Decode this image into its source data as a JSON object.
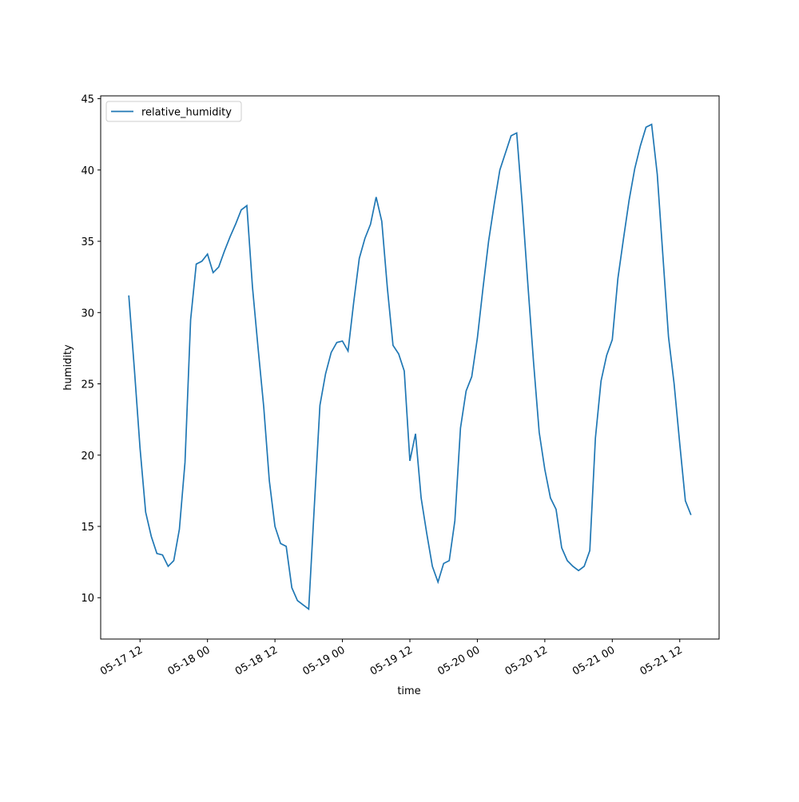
{
  "chart_data": {
    "type": "line",
    "x": [
      "05-17 10",
      "05-17 11",
      "05-17 12",
      "05-17 13",
      "05-17 14",
      "05-17 15",
      "05-17 16",
      "05-17 17",
      "05-17 18",
      "05-17 19",
      "05-17 20",
      "05-17 21",
      "05-17 22",
      "05-17 23",
      "05-18 00",
      "05-18 01",
      "05-18 02",
      "05-18 03",
      "05-18 04",
      "05-18 05",
      "05-18 06",
      "05-18 07",
      "05-18 08",
      "05-18 09",
      "05-18 10",
      "05-18 11",
      "05-18 12",
      "05-18 13",
      "05-18 14",
      "05-18 15",
      "05-18 16",
      "05-18 17",
      "05-18 18",
      "05-18 19",
      "05-18 20",
      "05-18 21",
      "05-18 22",
      "05-18 23",
      "05-19 00",
      "05-19 01",
      "05-19 02",
      "05-19 03",
      "05-19 04",
      "05-19 05",
      "05-19 06",
      "05-19 07",
      "05-19 08",
      "05-19 09",
      "05-19 10",
      "05-19 11",
      "05-19 12",
      "05-19 13",
      "05-19 14",
      "05-19 15",
      "05-19 16",
      "05-19 17",
      "05-19 18",
      "05-19 19",
      "05-19 20",
      "05-19 21",
      "05-19 22",
      "05-19 23",
      "05-20 00",
      "05-20 01",
      "05-20 02",
      "05-20 03",
      "05-20 04",
      "05-20 05",
      "05-20 06",
      "05-20 07",
      "05-20 08",
      "05-20 09",
      "05-20 10",
      "05-20 11",
      "05-20 12",
      "05-20 13",
      "05-20 14",
      "05-20 15",
      "05-20 16",
      "05-20 17",
      "05-20 18",
      "05-20 19",
      "05-20 20",
      "05-20 21",
      "05-20 22",
      "05-20 23",
      "05-21 00",
      "05-21 01",
      "05-21 02",
      "05-21 03",
      "05-21 04",
      "05-21 05",
      "05-21 06",
      "05-21 07",
      "05-21 08",
      "05-21 09",
      "05-21 10",
      "05-21 11",
      "05-21 12",
      "05-21 13",
      "05-21 14"
    ],
    "series": [
      {
        "name": "relative_humidity",
        "color": "#1f77b4",
        "values": [
          31.2,
          26,
          20.5,
          16,
          14.3,
          13.1,
          13,
          12.2,
          12.6,
          14.8,
          19.5,
          29.5,
          33.4,
          33.6,
          34.1,
          32.8,
          33.2,
          34.3,
          35.3,
          36.2,
          37.2,
          37.5,
          31.8,
          27.5,
          23.4,
          18.2,
          15,
          13.8,
          13.6,
          10.7,
          9.8,
          9.5,
          9.2,
          16.4,
          23.5,
          25.7,
          27.2,
          27.9,
          28,
          27.3,
          30.7,
          33.8,
          35.2,
          36.2,
          38.1,
          36.4,
          31.7,
          27.7,
          27.1,
          25.9,
          19.6,
          21.5,
          17,
          14.5,
          12.2,
          11.1,
          12.4,
          12.6,
          15.4,
          21.9,
          24.5,
          25.5,
          28.2,
          31.7,
          35,
          37.6,
          40,
          41.2,
          42.4,
          42.6,
          37.5,
          31.9,
          26.5,
          21.6,
          19,
          17,
          16.2,
          13.5,
          12.6,
          12.2,
          11.9,
          12.2,
          13.3,
          21.2,
          25.2,
          27,
          28.1,
          32.4,
          35.2,
          37.9,
          40.1,
          41.7,
          43,
          43.2,
          39.7,
          34,
          28.3,
          25,
          20.8,
          16.8,
          15.8
        ]
      }
    ],
    "xlabel": "time",
    "ylabel": "humidity",
    "xlim": [
      "05-17 05",
      "05-21 19"
    ],
    "xticks": [
      "05-17 12",
      "05-18 00",
      "05-18 12",
      "05-19 00",
      "05-19 12",
      "05-20 00",
      "05-20 12",
      "05-21 00",
      "05-21 12"
    ],
    "ylim": [
      7.1,
      45.2
    ],
    "yticks": [
      10,
      15,
      20,
      25,
      30,
      35,
      40,
      45
    ],
    "legend": "upper left"
  }
}
